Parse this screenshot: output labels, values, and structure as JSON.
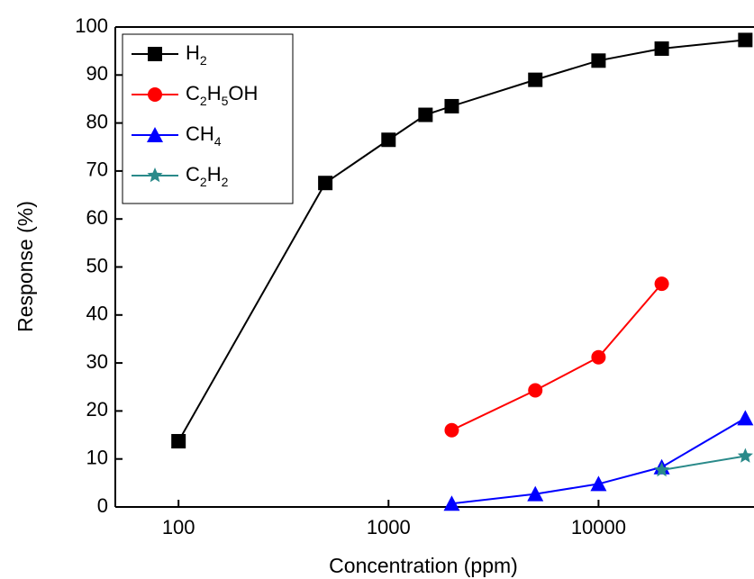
{
  "chart_data": {
    "type": "line",
    "x_label": "Concentration (ppm)",
    "y_label": "Response (%)",
    "log_x": true,
    "xlim": [
      50,
      55000
    ],
    "xticks": [
      100,
      1000,
      10000
    ],
    "ylim": [
      0,
      100
    ],
    "yticks": [
      0,
      10,
      20,
      30,
      40,
      50,
      60,
      70,
      80,
      90,
      100
    ],
    "legend": "top-left",
    "series": [
      {
        "name": "H2",
        "color": "#000000",
        "marker": "square",
        "x": [
          100,
          500,
          1000,
          1500,
          2000,
          5000,
          10000,
          20000,
          50000
        ],
        "values": [
          13.7,
          67.5,
          76.5,
          81.7,
          83.5,
          89,
          93,
          95.5,
          97.3
        ]
      },
      {
        "name": "C2H5OH",
        "color": "#ff0000",
        "marker": "circle",
        "x": [
          2000,
          5000,
          10000,
          20000
        ],
        "values": [
          16,
          24.3,
          31.2,
          46.5
        ]
      },
      {
        "name": "CH4",
        "color": "#0000ff",
        "marker": "triangle",
        "x": [
          2000,
          5000,
          10000,
          20000,
          50000
        ],
        "values": [
          0.7,
          2.7,
          4.8,
          8.3,
          18.5
        ]
      },
      {
        "name": "C2H2",
        "color": "#2a8a8a",
        "marker": "star",
        "x": [
          20000,
          50000
        ],
        "values": [
          7.7,
          10.6
        ]
      }
    ]
  }
}
